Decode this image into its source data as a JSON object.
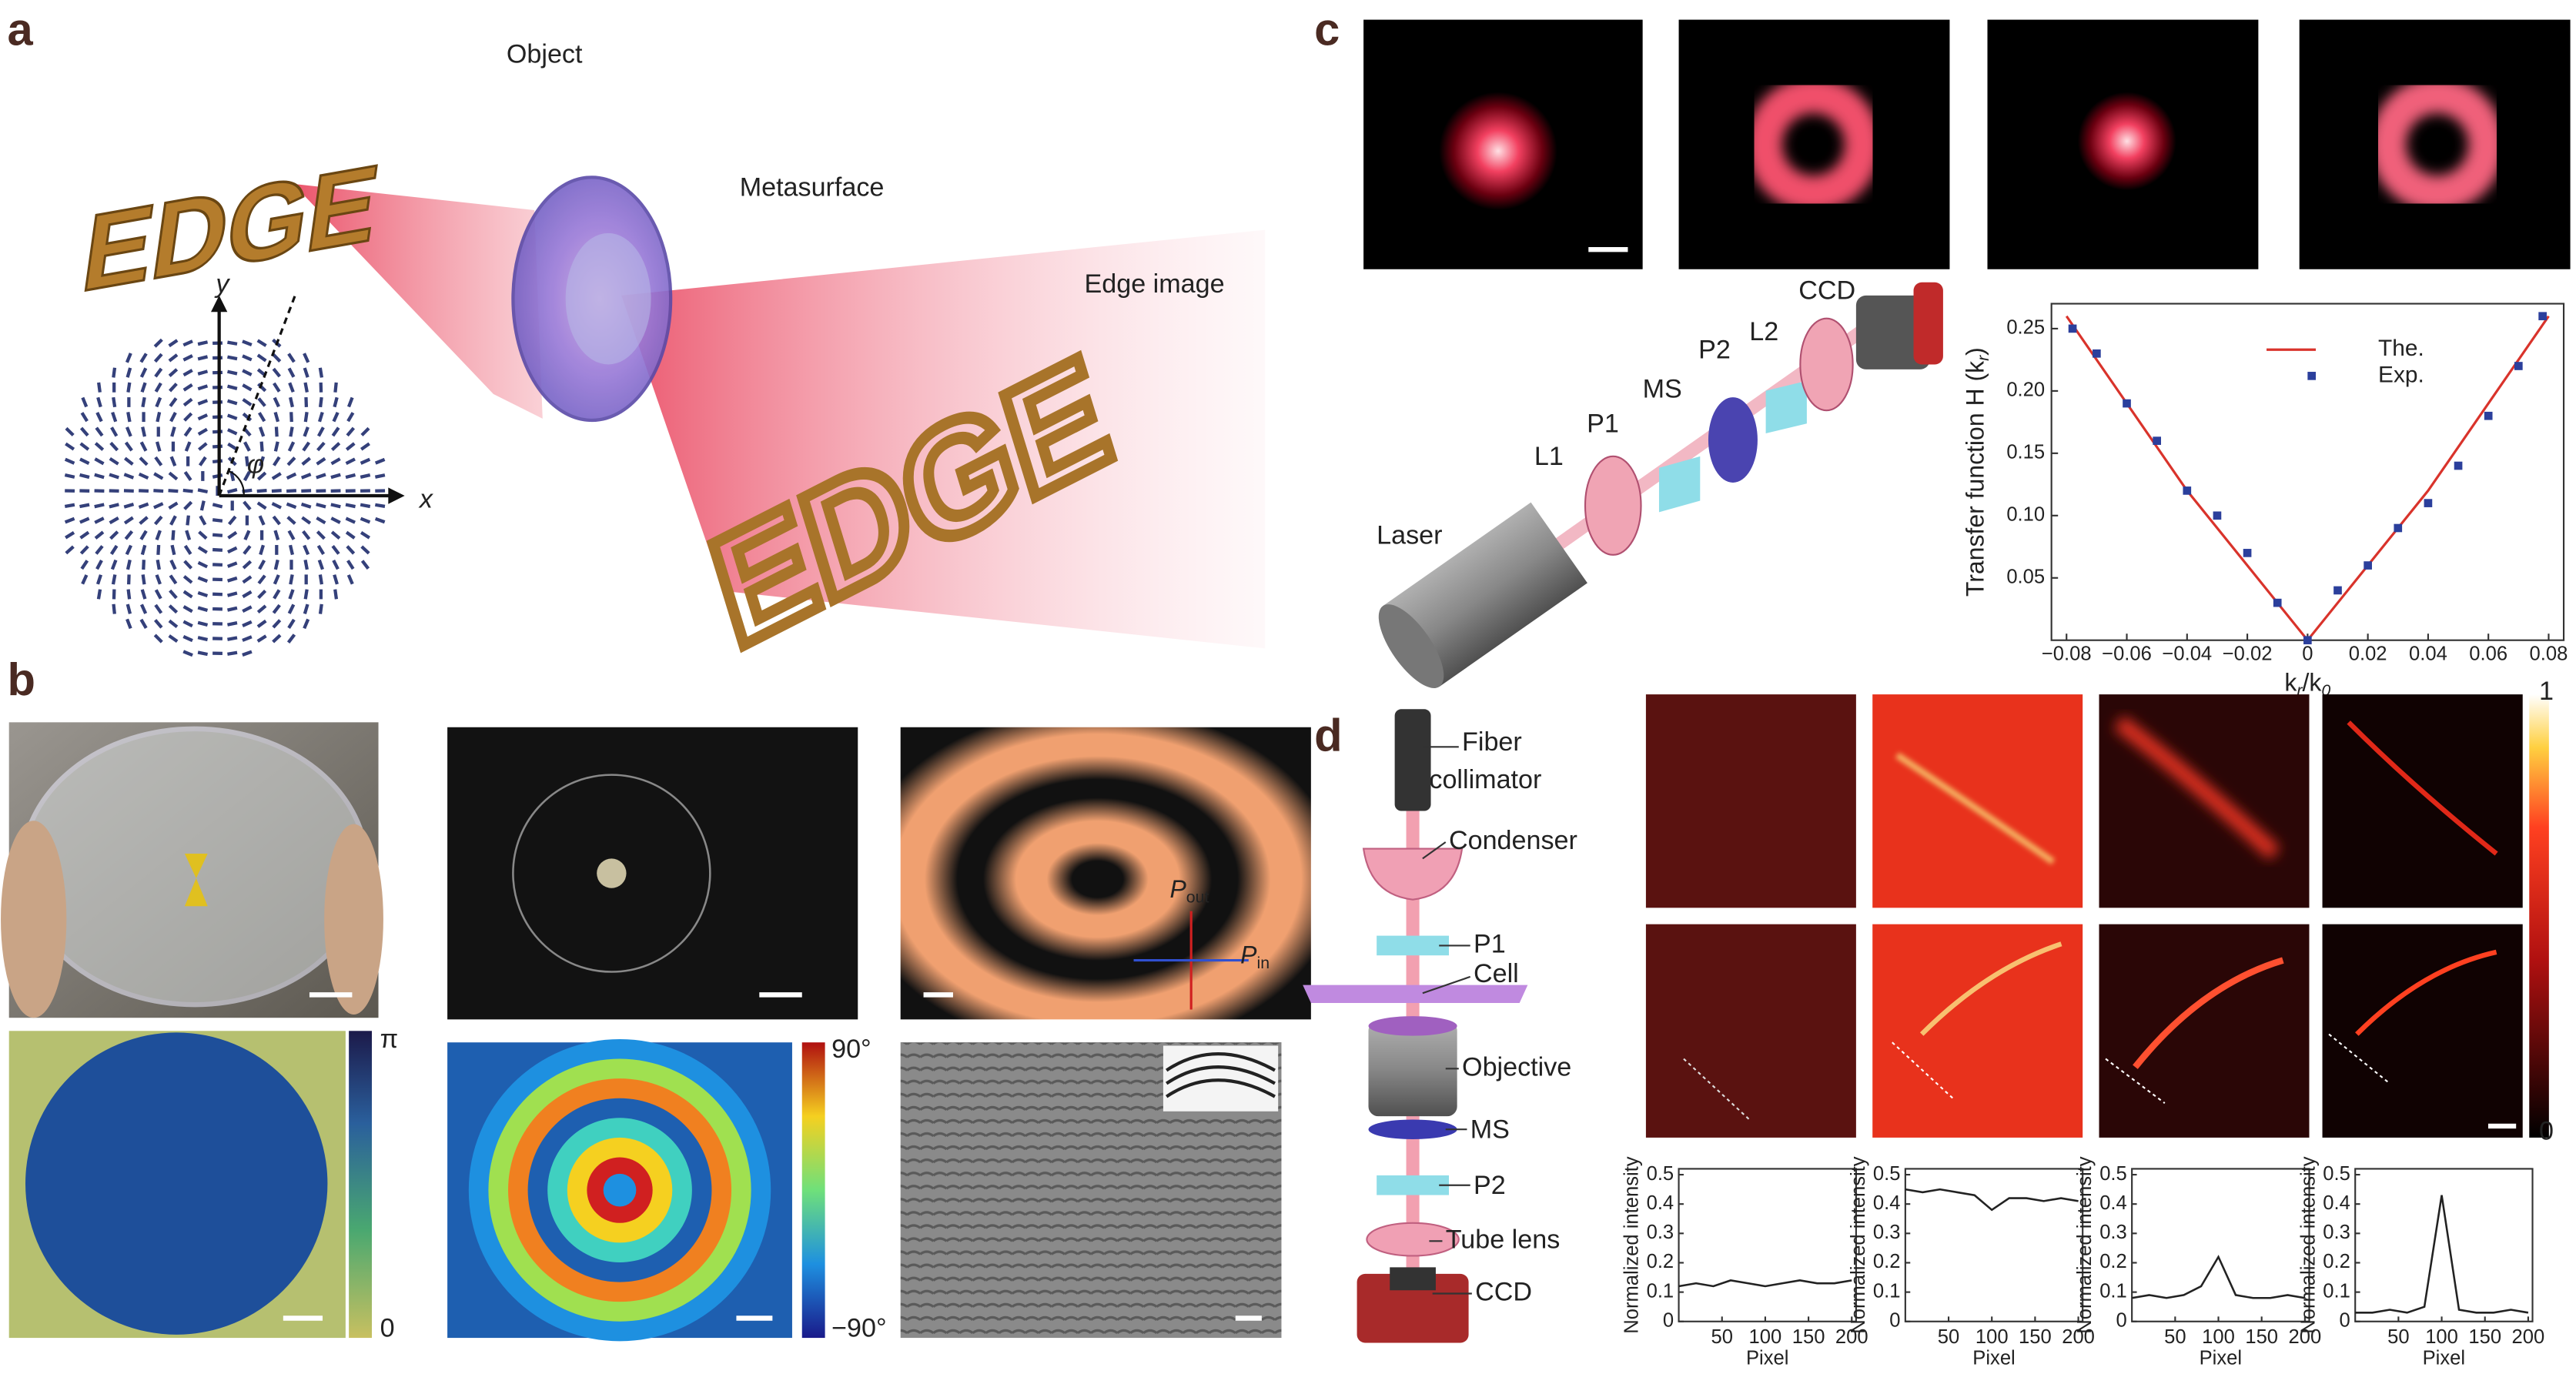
{
  "figure": {
    "panel_a": {
      "label": "a",
      "object": "Object",
      "metasurface": "Metasurface",
      "edge_image": "Edge image",
      "object_word": "EDGE",
      "image_word": "EDGE",
      "axis_y": "y",
      "axis_x": "x",
      "angle": "φ"
    },
    "panel_b": {
      "label": "b",
      "colorbar_1": {
        "top": "π",
        "bottom": "0"
      },
      "colorbar_2": {
        "top": "90°",
        "bottom": "−90°"
      },
      "p_out": [
        "P",
        "out"
      ],
      "p_in": [
        "P",
        "in"
      ]
    },
    "panel_c": {
      "label": "c",
      "setup": {
        "ccd": "CCD",
        "l2": "L2",
        "p2": "P2",
        "ms": "MS",
        "p1": "P1",
        "l1": "L1",
        "laser": "Laser"
      },
      "chart": {
        "type": "scatter",
        "y_label": [
          "Transfer function H (k",
          "r",
          ")"
        ],
        "x_label": [
          "k",
          "r",
          "/k",
          "0"
        ],
        "xlim": [
          -0.085,
          0.085
        ],
        "ylim": [
          0,
          0.27
        ],
        "xticks": [
          {
            "value": -0.08,
            "label": "−0.08"
          },
          {
            "value": -0.06,
            "label": "−0.06"
          },
          {
            "value": -0.04,
            "label": "−0.04"
          },
          {
            "value": -0.02,
            "label": "−0.02"
          },
          0,
          0.02,
          0.04,
          0.06,
          0.08
        ],
        "yticks": [
          0.05,
          {
            "value": 0.1,
            "label": "0.10"
          },
          0.15,
          {
            "value": 0.2,
            "label": "0.20"
          },
          0.25
        ],
        "series": [
          {
            "name": "The.",
            "color": "#d9332b",
            "x": [
              -0.08,
              -0.04,
              0,
              0.04,
              0.08
            ],
            "values": [
              0.26,
              0.12,
              0,
              0.12,
              0.26
            ]
          },
          {
            "name": "Exp.",
            "color": "#2b3f9c",
            "x": [
              -0.078,
              -0.07,
              -0.06,
              -0.05,
              -0.04,
              -0.03,
              -0.02,
              -0.01,
              0,
              0.01,
              0.02,
              0.03,
              0.04,
              0.05,
              0.06,
              0.07,
              0.078
            ],
            "values": [
              0.25,
              0.23,
              0.19,
              0.16,
              0.12,
              0.1,
              0.07,
              0.03,
              0,
              0.04,
              0.06,
              0.09,
              0.11,
              0.14,
              0.18,
              0.22,
              0.26
            ]
          }
        ]
      }
    },
    "panel_d": {
      "label": "d",
      "setup": {
        "fiber": [
          "Fiber",
          "collimator"
        ],
        "condenser": "Condenser",
        "p1": "P1",
        "cell": "Cell",
        "objective": "Objective",
        "ms": "MS",
        "p2": "P2",
        "tube_lens": "Tube lens",
        "ccd": "CCD"
      },
      "colorbar": {
        "top": "1",
        "bottom": "0"
      },
      "intensity": {
        "type": "line",
        "y_label": "Normalized intensity",
        "x_label": "Pixel",
        "xlim": [
          0,
          205
        ],
        "ylim": [
          0,
          0.52
        ],
        "xticks": [
          50,
          100,
          150,
          200
        ],
        "yticks": [
          0,
          0.1,
          0.2,
          0.3,
          0.4,
          0.5
        ],
        "x": [
          0,
          20,
          40,
          60,
          80,
          100,
          120,
          140,
          160,
          180,
          200
        ],
        "series": [
          {
            "color": "#222222",
            "values": [
              0.12,
              0.13,
              0.12,
              0.14,
              0.13,
              0.12,
              0.13,
              0.14,
              0.13,
              0.13,
              0.14
            ]
          },
          {
            "color": "#222222",
            "values": [
              0.45,
              0.44,
              0.45,
              0.44,
              0.43,
              0.38,
              0.42,
              0.42,
              0.41,
              0.42,
              0.41
            ]
          },
          {
            "color": "#222222",
            "values": [
              0.08,
              0.09,
              0.08,
              0.09,
              0.12,
              0.22,
              0.09,
              0.08,
              0.08,
              0.09,
              0.08
            ]
          },
          {
            "color": "#222222",
            "values": [
              0.03,
              0.03,
              0.04,
              0.03,
              0.05,
              0.43,
              0.04,
              0.03,
              0.03,
              0.04,
              0.03
            ]
          }
        ]
      }
    }
  }
}
